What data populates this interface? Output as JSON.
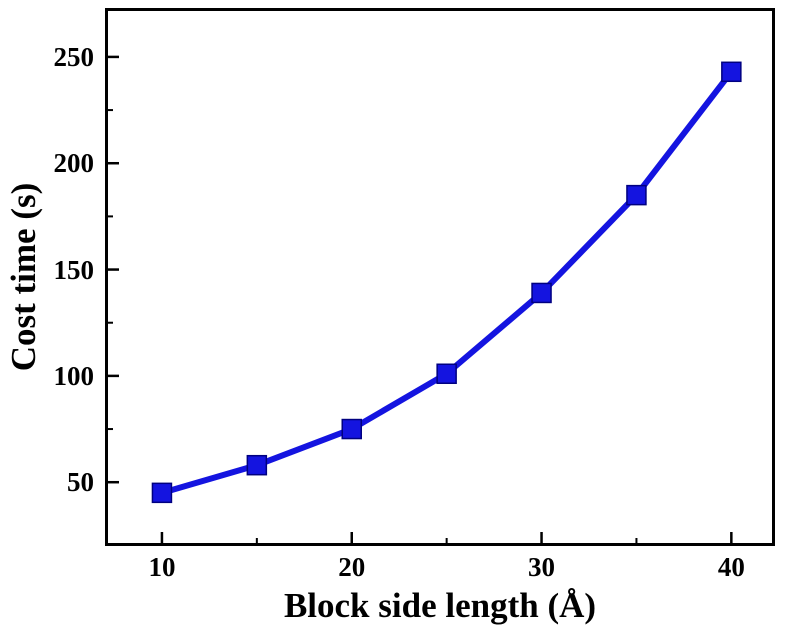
{
  "figure": {
    "background": "#ffffff",
    "axis_color": "#000000"
  },
  "chart_data": {
    "type": "line",
    "title": "",
    "xlabel": "Block side length (Å)",
    "ylabel": "Cost time (s)",
    "x": [
      10,
      15,
      20,
      25,
      30,
      35,
      40
    ],
    "series": [
      {
        "name": "Cost time",
        "values": [
          45,
          58,
          75,
          101,
          139,
          185,
          243
        ]
      }
    ],
    "xlim": [
      7,
      42.3
    ],
    "ylim": [
      20,
      273
    ],
    "x_ticks_major": [
      10,
      20,
      30,
      40
    ],
    "x_ticks_minor": [
      15,
      25,
      35
    ],
    "y_ticks_major": [
      50,
      100,
      150,
      200,
      250
    ],
    "y_ticks_minor": [
      75,
      125,
      175,
      225
    ],
    "grid": false,
    "legend": "none",
    "marker": "square",
    "line_color": "#1414e0",
    "marker_color": "#1414e0",
    "marker_edge_color": "#000080"
  }
}
